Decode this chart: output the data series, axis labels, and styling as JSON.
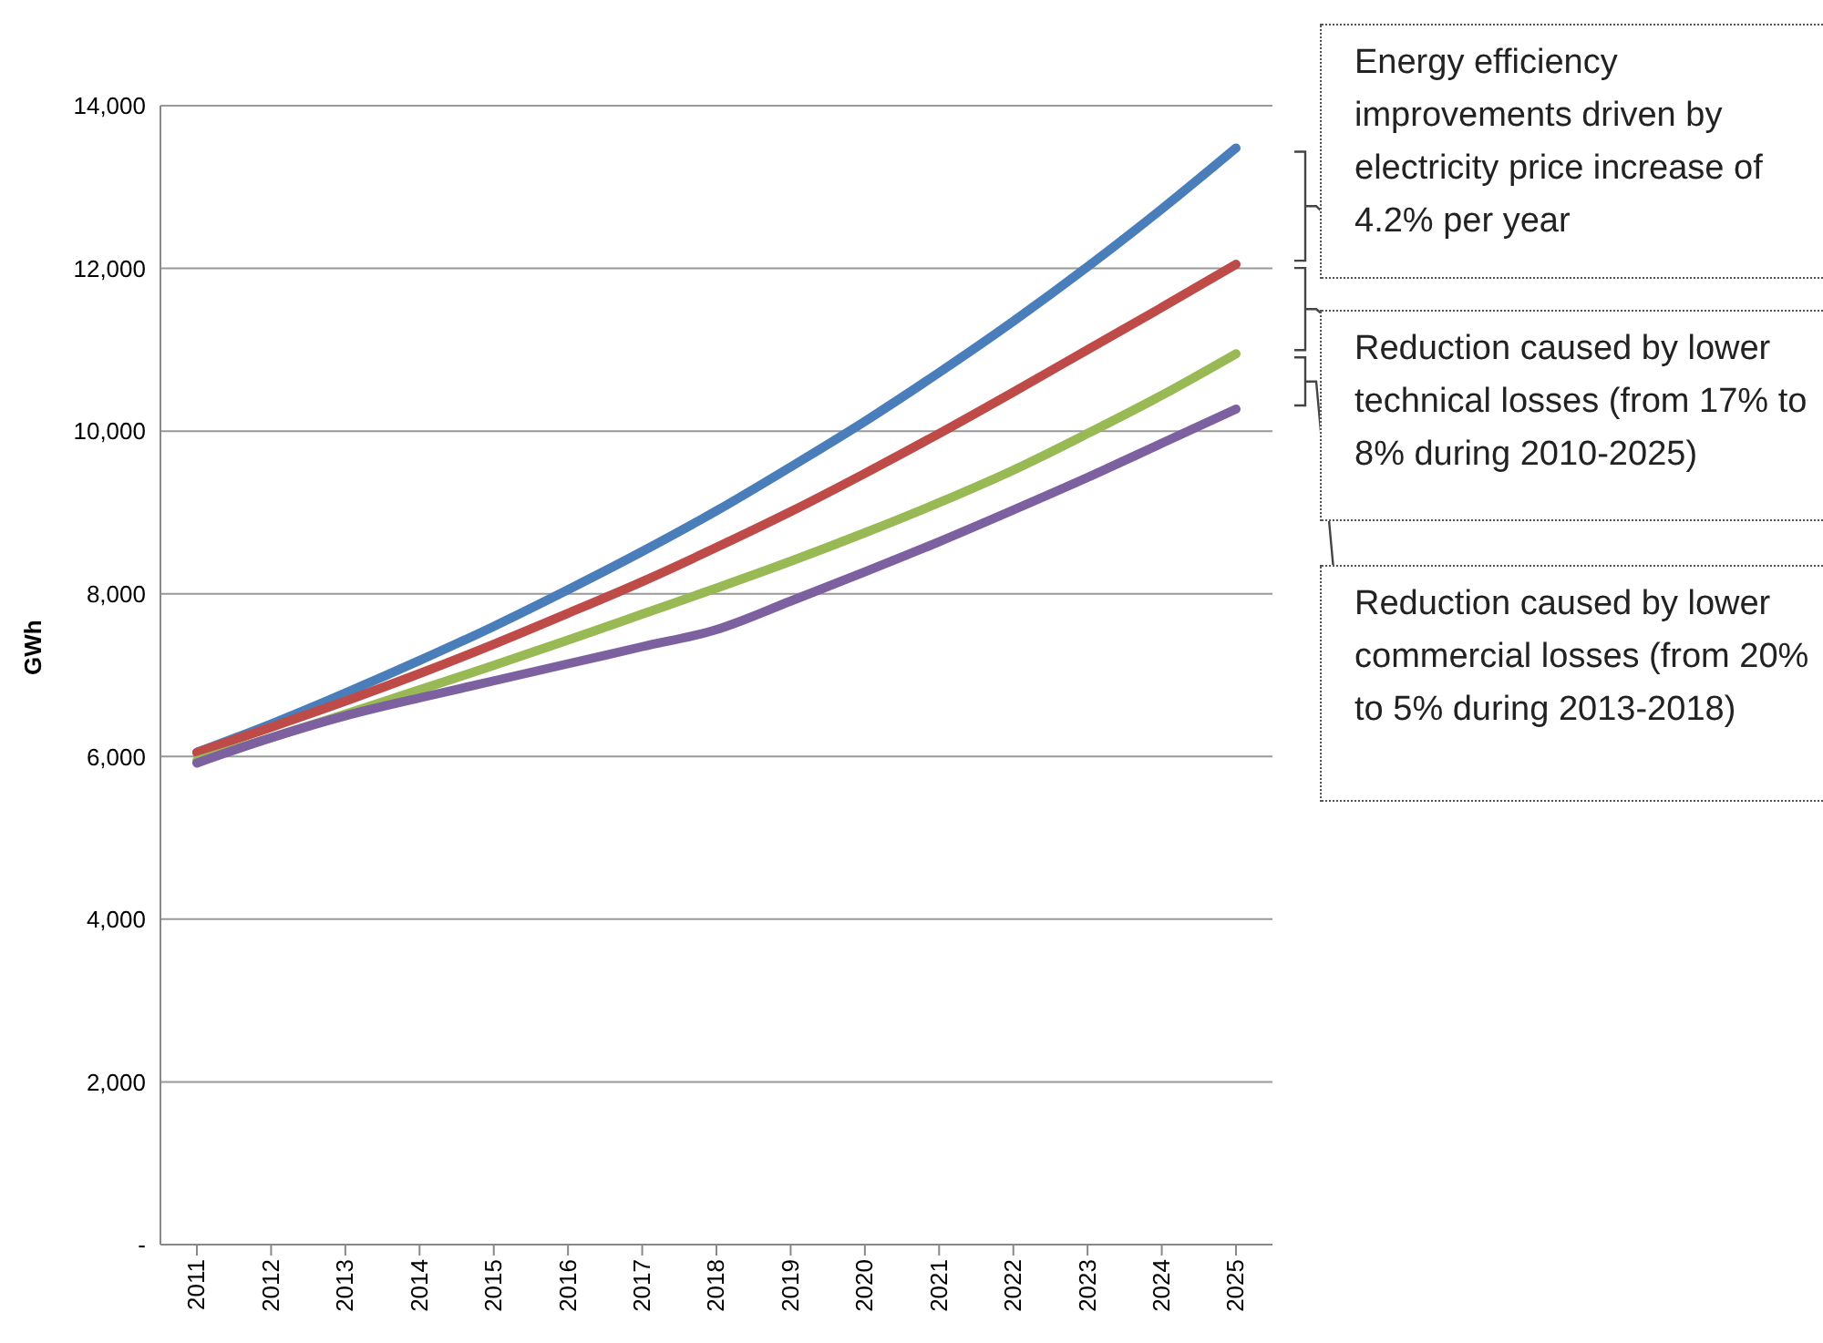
{
  "chart_data": {
    "type": "line",
    "ylabel": "GWh",
    "categories": [
      "2011",
      "2012",
      "2013",
      "2014",
      "2015",
      "2016",
      "2017",
      "2018",
      "2019",
      "2020",
      "2021",
      "2022",
      "2023",
      "2024",
      "2025"
    ],
    "series": [
      {
        "color": "#4a7ebb",
        "values": [
          6050,
          6400,
          6780,
          7180,
          7600,
          8050,
          8520,
          9020,
          9560,
          10120,
          10720,
          11350,
          12020,
          12730,
          13480
        ]
      },
      {
        "color": "#be4b48",
        "values": [
          6050,
          6360,
          6680,
          7020,
          7380,
          7760,
          8150,
          8570,
          9010,
          9480,
          9970,
          10480,
          11000,
          11520,
          12050
        ]
      },
      {
        "color": "#98b954",
        "values": [
          5950,
          6230,
          6520,
          6820,
          7120,
          7430,
          7750,
          8070,
          8400,
          8750,
          9120,
          9520,
          9970,
          10440,
          10950
        ]
      },
      {
        "color": "#7d60a0",
        "values": [
          5920,
          6230,
          6500,
          6720,
          6930,
          7140,
          7350,
          7560,
          7910,
          8270,
          8640,
          9030,
          9430,
          9850,
          10270
        ]
      }
    ],
    "ylim": [
      0,
      14000
    ],
    "yticks": [
      {
        "value": 0,
        "label": "-"
      },
      {
        "value": 2000,
        "label": "2,000"
      },
      {
        "value": 4000,
        "label": "4,000"
      },
      {
        "value": 6000,
        "label": "6,000"
      },
      {
        "value": 8000,
        "label": "8,000"
      },
      {
        "value": 10000,
        "label": "10,000"
      },
      {
        "value": 12000,
        "label": "12,000"
      },
      {
        "value": 14000,
        "label": "14,000"
      }
    ],
    "grid": "y",
    "marker": "none",
    "line_style": "solid",
    "legend": false,
    "annotations": [
      "Energy efficiency improvements driven by electricity price increase of 4.2% per year",
      "Reduction caused by lower technical losses (from 17% to 8% during 2010-2025)",
      "Reduction caused by lower commercial losses (from 20% to 5% during 2013-2018)"
    ]
  }
}
